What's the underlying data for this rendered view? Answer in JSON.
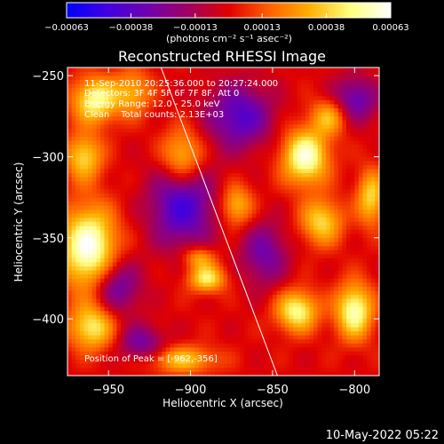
{
  "chart_data": {
    "type": "heatmap",
    "title": "Reconstructed RHESSI Image",
    "xlabel": "Heliocentric X (arcsec)",
    "ylabel": "Heliocentric Y (arcsec)",
    "xlim": [
      -975,
      -785
    ],
    "ylim": [
      -435,
      -245
    ],
    "x_ticks": [
      -950,
      -900,
      -850,
      -800
    ],
    "x_tick_labels": [
      "−950",
      "−900",
      "−850",
      "−800"
    ],
    "y_ticks": [
      -250,
      -300,
      -350,
      -400
    ],
    "y_tick_labels": [
      "−250",
      "−300",
      "−350",
      "−400"
    ],
    "colorbar": {
      "range": [
        -0.00063,
        0.00063
      ],
      "ticks": [
        -0.00063,
        -0.00038,
        -0.00013,
        0.00013,
        0.00038,
        0.00063
      ],
      "tick_labels": [
        "−0.00063",
        "−0.00038",
        "−0.00013",
        "0.00013",
        "0.00038",
        "0.00063"
      ],
      "unit_label": "(photons cm⁻² s⁻¹ asec⁻²)",
      "colors": [
        "#0000ff",
        "#4000e0",
        "#7000b0",
        "#a00060",
        "#e00000",
        "#ff6000",
        "#ffb000",
        "#ffff80",
        "#ffffff"
      ]
    },
    "annotations": [
      "11-Sep-2010 20:25:36.000 to 20:27:24.000",
      "Detectors: 3F 4F 5F 6F 7F 8F, Att 0",
      "Energy Range: 12.0 - 25.0 keV",
      "Clean    Total counts: 2.13E+03"
    ],
    "peak_label": "Position of Peak = [-962,-356]",
    "peak": [
      -962,
      -356
    ],
    "limb_line": {
      "x": [
        -918,
        -847
      ],
      "y": [
        -245,
        -435
      ],
      "color": "#ffffff"
    },
    "bright_sources": [
      {
        "x": -958,
        "y": -265,
        "amp": 0.0005,
        "sx": 10,
        "sy": 10
      },
      {
        "x": -965,
        "y": -300,
        "amp": 0.0004,
        "sx": 8,
        "sy": 10
      },
      {
        "x": -962,
        "y": -356,
        "amp": 0.00063,
        "sx": 12,
        "sy": 18
      },
      {
        "x": -960,
        "y": -405,
        "amp": 0.00045,
        "sx": 10,
        "sy": 10
      },
      {
        "x": -905,
        "y": -300,
        "amp": 0.0004,
        "sx": 9,
        "sy": 12
      },
      {
        "x": -872,
        "y": -330,
        "amp": 0.00035,
        "sx": 7,
        "sy": 9
      },
      {
        "x": -890,
        "y": -375,
        "amp": 0.00045,
        "sx": 8,
        "sy": 6
      },
      {
        "x": -895,
        "y": -362,
        "amp": 0.0003,
        "sx": 7,
        "sy": 5
      },
      {
        "x": -830,
        "y": -300,
        "amp": 0.00058,
        "sx": 10,
        "sy": 12
      },
      {
        "x": -815,
        "y": -275,
        "amp": 0.00035,
        "sx": 8,
        "sy": 8
      },
      {
        "x": -820,
        "y": -340,
        "amp": 0.0004,
        "sx": 9,
        "sy": 10
      },
      {
        "x": -835,
        "y": -395,
        "amp": 0.0005,
        "sx": 9,
        "sy": 9
      },
      {
        "x": -800,
        "y": -395,
        "amp": 0.00055,
        "sx": 8,
        "sy": 12
      },
      {
        "x": -790,
        "y": -325,
        "amp": 0.0004,
        "sx": 6,
        "sy": 12
      },
      {
        "x": -905,
        "y": -425,
        "amp": 0.00035,
        "sx": 15,
        "sy": 6
      },
      {
        "x": -935,
        "y": -260,
        "amp": 0.0003,
        "sx": 8,
        "sy": 10
      }
    ],
    "dark_sources": [
      {
        "x": -905,
        "y": -330,
        "amp": -0.00045,
        "sx": 14,
        "sy": 18
      },
      {
        "x": -870,
        "y": -275,
        "amp": -0.0004,
        "sx": 14,
        "sy": 14
      },
      {
        "x": -945,
        "y": -380,
        "amp": -0.00035,
        "sx": 10,
        "sy": 12
      },
      {
        "x": -855,
        "y": -360,
        "amp": -0.0003,
        "sx": 10,
        "sy": 14
      },
      {
        "x": -800,
        "y": -265,
        "amp": -0.00035,
        "sx": 10,
        "sy": 10
      },
      {
        "x": -930,
        "y": -415,
        "amp": -0.0003,
        "sx": 10,
        "sy": 8
      }
    ]
  },
  "footer": {
    "timestamp": "10-May-2022 05:22"
  }
}
